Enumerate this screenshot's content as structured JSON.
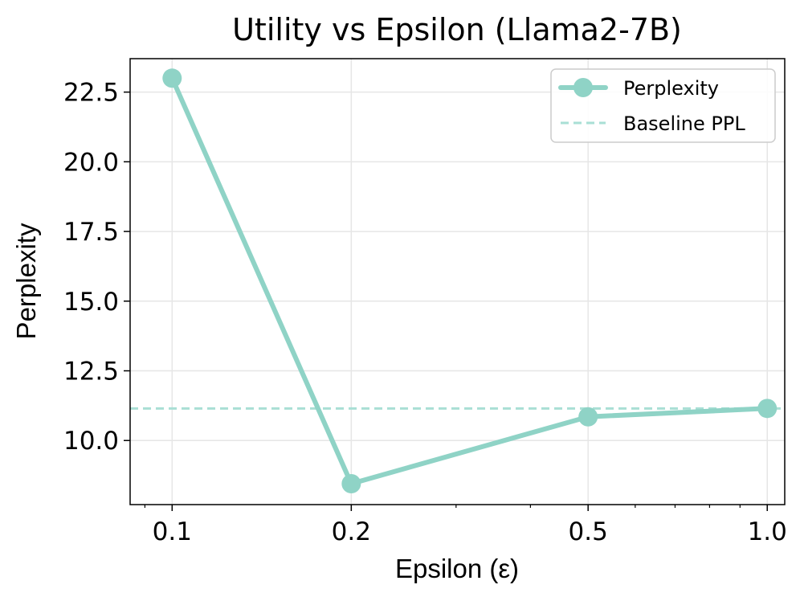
{
  "colors": {
    "series": "#8fd3c6",
    "baseline": "#a9dfd5",
    "grid": "#e6e6e6",
    "axis": "#000000"
  },
  "chart_data": {
    "type": "line",
    "title": "Utility vs Epsilon (Llama2-7B)",
    "xlabel": "Epsilon (ε)",
    "ylabel": "Perplexity",
    "xscale": "log",
    "xlim": [
      0.085,
      1.07
    ],
    "ylim": [
      7.7,
      23.7
    ],
    "xticks": [
      0.1,
      0.2,
      0.5,
      1.0
    ],
    "xtick_labels": [
      "0.1",
      "0.2",
      "0.5",
      "1.0"
    ],
    "yticks": [
      10.0,
      12.5,
      15.0,
      17.5,
      20.0,
      22.5
    ],
    "ytick_labels": [
      "10.0",
      "12.5",
      "15.0",
      "17.5",
      "20.0",
      "22.5"
    ],
    "grid": true,
    "legend_position": "top-right",
    "series": [
      {
        "name": "Perplexity",
        "x": [
          0.1,
          0.2,
          0.5,
          1.0
        ],
        "y": [
          23.0,
          8.45,
          10.85,
          11.15
        ],
        "style": "solid-markers"
      }
    ],
    "hlines": [
      {
        "name": "Baseline PPL",
        "y": 11.15,
        "style": "dashed"
      }
    ]
  }
}
